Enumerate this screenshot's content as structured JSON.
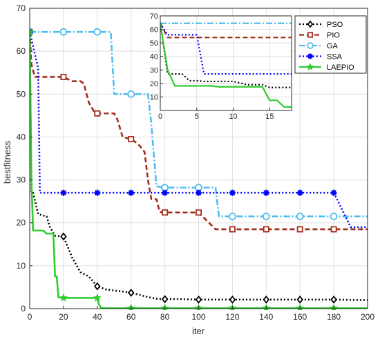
{
  "chart_data": [
    {
      "type": "line",
      "panel": "main",
      "xlabel": "iter",
      "ylabel": "bestfitness",
      "xlim": [
        0,
        200
      ],
      "ylim": [
        0,
        70
      ],
      "xticks": [
        0,
        20,
        40,
        60,
        80,
        100,
        120,
        140,
        160,
        180,
        200
      ],
      "yticks": [
        0,
        10,
        20,
        30,
        40,
        50,
        60,
        70
      ],
      "grid": true,
      "series": [
        {
          "name": "PSO",
          "color": "#000000",
          "linestyle": "dotted",
          "marker": "diamond",
          "x": [
            0,
            1,
            2,
            5,
            10,
            12,
            15,
            20,
            25,
            30,
            35,
            40,
            45,
            50,
            55,
            60,
            65,
            70,
            75,
            80,
            90,
            100,
            120,
            140,
            160,
            180,
            200
          ],
          "y": [
            64.5,
            27,
            27,
            22,
            21.5,
            19,
            17,
            16.8,
            12,
            8.5,
            7.5,
            5.2,
            4.5,
            4.2,
            4,
            3.7,
            3.2,
            2.7,
            2.3,
            2.2,
            2.2,
            2.1,
            2.1,
            2.1,
            2.1,
            2.1,
            2.0
          ]
        },
        {
          "name": "PIO",
          "color": "#a02c1c",
          "linestyle": "dashed",
          "marker": "square",
          "x": [
            0,
            1,
            3,
            5,
            20,
            25,
            30,
            32,
            35,
            38,
            40,
            45,
            50,
            52,
            55,
            60,
            62,
            65,
            68,
            70,
            72,
            75,
            77,
            80,
            100,
            110,
            120,
            200
          ],
          "y": [
            64.5,
            57,
            54,
            54,
            54,
            53,
            53,
            52.5,
            48,
            46,
            45.5,
            45.5,
            45.5,
            44,
            40,
            39.5,
            39,
            38,
            36.5,
            30,
            25.5,
            25.5,
            22.5,
            22.4,
            22.4,
            18.5,
            18.5,
            18.5
          ]
        },
        {
          "name": "GA",
          "color": "#4dbeee",
          "linestyle": "dashdot",
          "marker": "circle",
          "x": [
            0,
            40,
            48,
            50,
            70,
            72,
            75,
            80,
            110,
            112,
            120,
            200
          ],
          "y": [
            64.5,
            64.5,
            64.5,
            50,
            50,
            43,
            28.5,
            28.2,
            28.2,
            21.5,
            21.5,
            21.5
          ]
        },
        {
          "name": "SSA",
          "color": "#0000ff",
          "linestyle": "dotted",
          "marker": "star",
          "x": [
            0,
            5,
            6,
            20,
            40,
            60,
            80,
            100,
            120,
            140,
            160,
            180,
            190,
            200
          ],
          "y": [
            64.5,
            56,
            27,
            27,
            27,
            27,
            27,
            27,
            27,
            27,
            27,
            27,
            19,
            19
          ]
        },
        {
          "name": "LAEPIO",
          "color": "#2ecc2e",
          "linestyle": "solid",
          "marker": "pentagram",
          "x": [
            0,
            1,
            2,
            8,
            10,
            14,
            15,
            16,
            17,
            18,
            20,
            40,
            41,
            42,
            43,
            60,
            80,
            100,
            120,
            140,
            160,
            180,
            200
          ],
          "y": [
            64.5,
            30,
            18.2,
            18.2,
            17.5,
            17.5,
            7.5,
            7.5,
            2.6,
            2.6,
            2.5,
            2.5,
            1,
            0.3,
            0.1,
            0.1,
            0.1,
            0.1,
            0.1,
            0.1,
            0.1,
            0.1,
            0.1
          ]
        }
      ],
      "legend": {
        "placement": "top-right",
        "entries": [
          "PSO",
          "PIO",
          "GA",
          "SSA",
          "LAEPIO"
        ]
      }
    },
    {
      "type": "line",
      "panel": "inset",
      "xlim": [
        0,
        18
      ],
      "ylim": [
        0,
        70
      ],
      "xticks": [
        0,
        5,
        10,
        15
      ],
      "yticks": [
        10,
        20,
        30,
        40,
        50,
        60,
        70
      ],
      "grid": true,
      "series": [
        {
          "name": "PSO",
          "color": "#000000",
          "x": [
            0,
            1,
            2,
            3,
            4,
            5,
            6,
            7,
            8,
            10,
            12,
            14,
            15,
            16,
            18
          ],
          "y": [
            64.5,
            27,
            27,
            27,
            22,
            22,
            21.5,
            21.5,
            21.5,
            21.5,
            19,
            19,
            17,
            17,
            17
          ]
        },
        {
          "name": "PIO",
          "color": "#a02c1c",
          "x": [
            0,
            1,
            2,
            18
          ],
          "y": [
            64.5,
            54,
            54,
            54
          ]
        },
        {
          "name": "GA",
          "color": "#4dbeee",
          "x": [
            0,
            18
          ],
          "y": [
            64.5,
            64.5
          ]
        },
        {
          "name": "SSA",
          "color": "#0000ff",
          "x": [
            0,
            1,
            5,
            6,
            18
          ],
          "y": [
            64.5,
            56,
            56,
            27,
            27
          ]
        },
        {
          "name": "LAEPIO",
          "color": "#2ecc2e",
          "x": [
            0,
            1,
            2,
            7,
            8,
            14,
            15,
            16,
            17,
            18
          ],
          "y": [
            64.5,
            30,
            18.2,
            18.2,
            17.5,
            17.5,
            7.5,
            7.5,
            2.6,
            2.6
          ]
        }
      ]
    }
  ]
}
